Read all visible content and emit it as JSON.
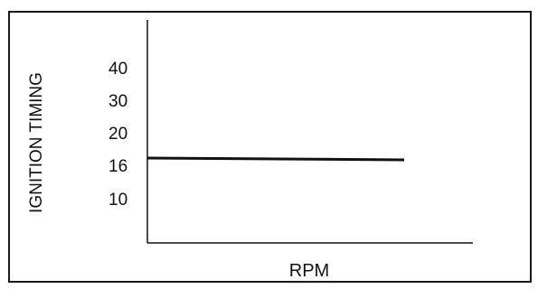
{
  "chart_data": {
    "type": "line",
    "title": "",
    "xlabel": "RPM",
    "ylabel": "IGNITION TIMING",
    "yticks": [
      "40",
      "30",
      "20",
      "16",
      "10"
    ],
    "series": [
      {
        "values": [
          16,
          16
        ]
      }
    ],
    "grid": false,
    "colors": {
      "line": "#111111",
      "axis": "#111111"
    }
  }
}
